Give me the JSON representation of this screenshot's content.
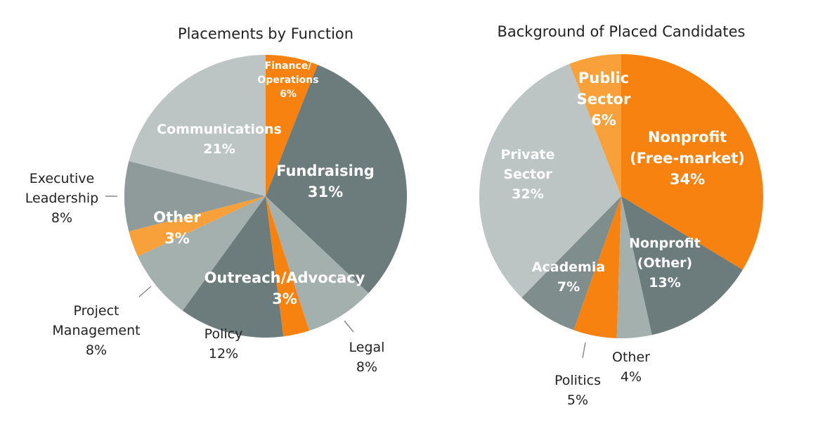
{
  "chart_data": [
    {
      "type": "pie",
      "title": "Placements by Function",
      "slices": [
        {
          "label": "Finance/\nOperations",
          "value": 6,
          "pct_label": "6%",
          "color": "#f7820f"
        },
        {
          "label": "Fundraising",
          "value": 31,
          "pct_label": "31%",
          "color": "#6c7b7c"
        },
        {
          "label": "Legal",
          "value": 8,
          "pct_label": "8%",
          "color": "#a4b0ae"
        },
        {
          "label": "Outreach/Advocacy",
          "value": 3,
          "pct_label": "3%",
          "color": "#f7820f"
        },
        {
          "label": "Policy",
          "value": 12,
          "pct_label": "12%",
          "color": "#6c7b7c"
        },
        {
          "label": "Project\nManagement",
          "value": 8,
          "pct_label": "8%",
          "color": "#a4b0ae"
        },
        {
          "label": "Other",
          "value": 3,
          "pct_label": "3%",
          "color": "#f8a03a"
        },
        {
          "label": "Executive\nLeadership",
          "value": 8,
          "pct_label": "8%",
          "color": "#8e9b9a"
        },
        {
          "label": "Communications",
          "value": 21,
          "pct_label": "21%",
          "color": "#bcc5c3"
        }
      ]
    },
    {
      "type": "pie",
      "title": "Background of Placed Candidates",
      "slices": [
        {
          "label": "Nonprofit\n(Free-market)",
          "value": 34,
          "pct_label": "34%",
          "color": "#f7820f"
        },
        {
          "label": "Nonprofit\n(Other)",
          "value": 13,
          "pct_label": "13%",
          "color": "#6c7b7c"
        },
        {
          "label": "Other",
          "value": 4,
          "pct_label": "4%",
          "color": "#a4b0ae"
        },
        {
          "label": "Politics",
          "value": 5,
          "pct_label": "5%",
          "color": "#f7820f"
        },
        {
          "label": "Academia",
          "value": 7,
          "pct_label": "7%",
          "color": "#7f8d8c"
        },
        {
          "label": "Private\nSector",
          "value": 32,
          "pct_label": "32%",
          "color": "#bcc5c3"
        },
        {
          "label": "Public\nSector",
          "value": 6,
          "pct_label": "6%",
          "color": "#f8a03a"
        }
      ]
    }
  ]
}
